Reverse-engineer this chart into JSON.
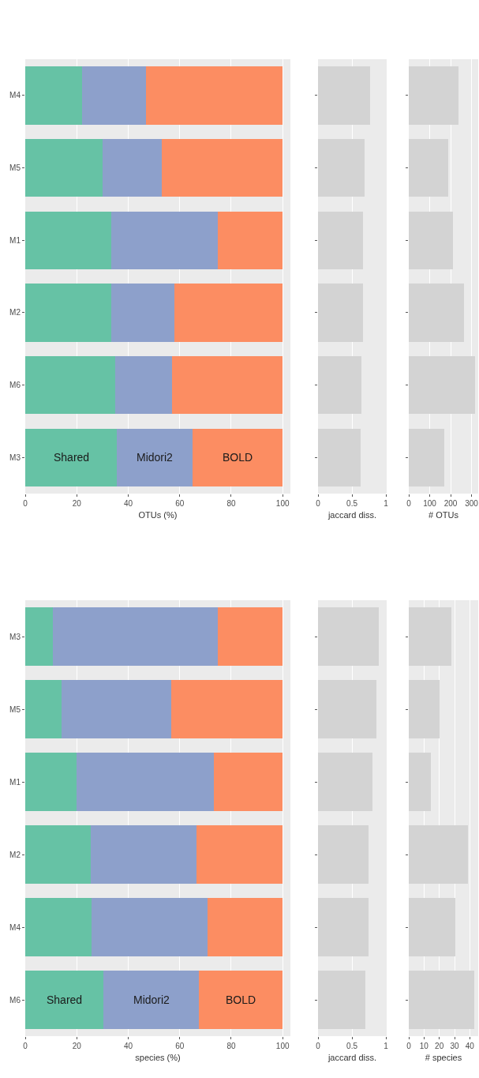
{
  "chart_data": [
    {
      "type": "bar",
      "orientation": "horizontal",
      "stacked": true,
      "categories": [
        "M4",
        "M5",
        "M1",
        "M2",
        "M6",
        "M3"
      ],
      "xlabel": "OTUs (%)",
      "xlim": [
        0,
        103
      ],
      "xticks": [
        0,
        20,
        40,
        60,
        80,
        100
      ],
      "grid": "x",
      "series": [
        {
          "name": "Shared",
          "color": "#66c2a5",
          "values": [
            22.1,
            30.1,
            33.4,
            33.4,
            35.0,
            35.6
          ]
        },
        {
          "name": "Midori2",
          "color": "#8da0cb",
          "values": [
            24.8,
            23.0,
            41.4,
            24.6,
            22.1,
            29.4
          ]
        },
        {
          "name": "BOLD",
          "color": "#fc8d62",
          "values": [
            53.1,
            46.9,
            25.2,
            42.0,
            42.9,
            35.0
          ]
        }
      ]
    },
    {
      "type": "bar",
      "orientation": "horizontal",
      "categories": [
        null,
        null,
        null,
        null,
        null,
        null
      ],
      "xlabel": "jaccard diss.",
      "xlim": [
        0,
        1.01
      ],
      "xticks": [
        0,
        0.5,
        1
      ],
      "grid": "x",
      "tick_labels": "x",
      "series": [
        {
          "color": "#d3d3d3",
          "values": [
            0.77,
            0.69,
            0.66,
            0.66,
            0.64,
            0.63
          ]
        }
      ]
    },
    {
      "type": "bar",
      "orientation": "horizontal",
      "categories": [
        null,
        null,
        null,
        null,
        null,
        null
      ],
      "xlabel": "# OTUs",
      "xlim": [
        0,
        332
      ],
      "xticks": [
        0,
        100,
        200,
        300
      ],
      "grid": "x",
      "tick_labels": "x",
      "series": [
        {
          "color": "#d3d3d3",
          "values": [
            238,
            187,
            212,
            264,
            317,
            170
          ]
        }
      ]
    },
    {
      "type": "bar",
      "orientation": "horizontal",
      "stacked": true,
      "categories": [
        "M3",
        "M5",
        "M1",
        "M2",
        "M4",
        "M6"
      ],
      "xlabel": "species (%)",
      "xlim": [
        0,
        103
      ],
      "xticks": [
        0,
        20,
        40,
        60,
        80,
        100
      ],
      "grid": "x",
      "series": [
        {
          "name": "Shared",
          "color": "#66c2a5",
          "values": [
            10.7,
            14.1,
            19.9,
            25.5,
            25.8,
            30.3
          ]
        },
        {
          "name": "Midori2",
          "color": "#8da0cb",
          "values": [
            64.1,
            42.6,
            53.4,
            41.1,
            45.1,
            37.2
          ]
        },
        {
          "name": "BOLD",
          "color": "#fc8d62",
          "values": [
            25.2,
            43.3,
            26.7,
            33.4,
            29.1,
            32.5
          ]
        }
      ]
    },
    {
      "type": "bar",
      "orientation": "horizontal",
      "categories": [
        null,
        null,
        null,
        null,
        null,
        null
      ],
      "xlabel": "jaccard diss.",
      "xlim": [
        0,
        1.01
      ],
      "xticks": [
        0,
        0.5,
        1
      ],
      "grid": "x",
      "tick_labels": "x",
      "series": [
        {
          "color": "#d3d3d3",
          "values": [
            0.89,
            0.86,
            0.8,
            0.74,
            0.74,
            0.7
          ]
        }
      ]
    },
    {
      "type": "bar",
      "orientation": "horizontal",
      "categories": [
        null,
        null,
        null,
        null,
        null,
        null
      ],
      "xlabel": "# species",
      "xlim": [
        0,
        45.5
      ],
      "xticks": [
        0,
        10,
        20,
        30,
        40
      ],
      "grid": "x",
      "tick_labels": "x",
      "series": [
        {
          "color": "#d3d3d3",
          "values": [
            27.8,
            20.4,
            14.7,
            38.8,
            30.6,
            42.7
          ]
        }
      ]
    }
  ]
}
